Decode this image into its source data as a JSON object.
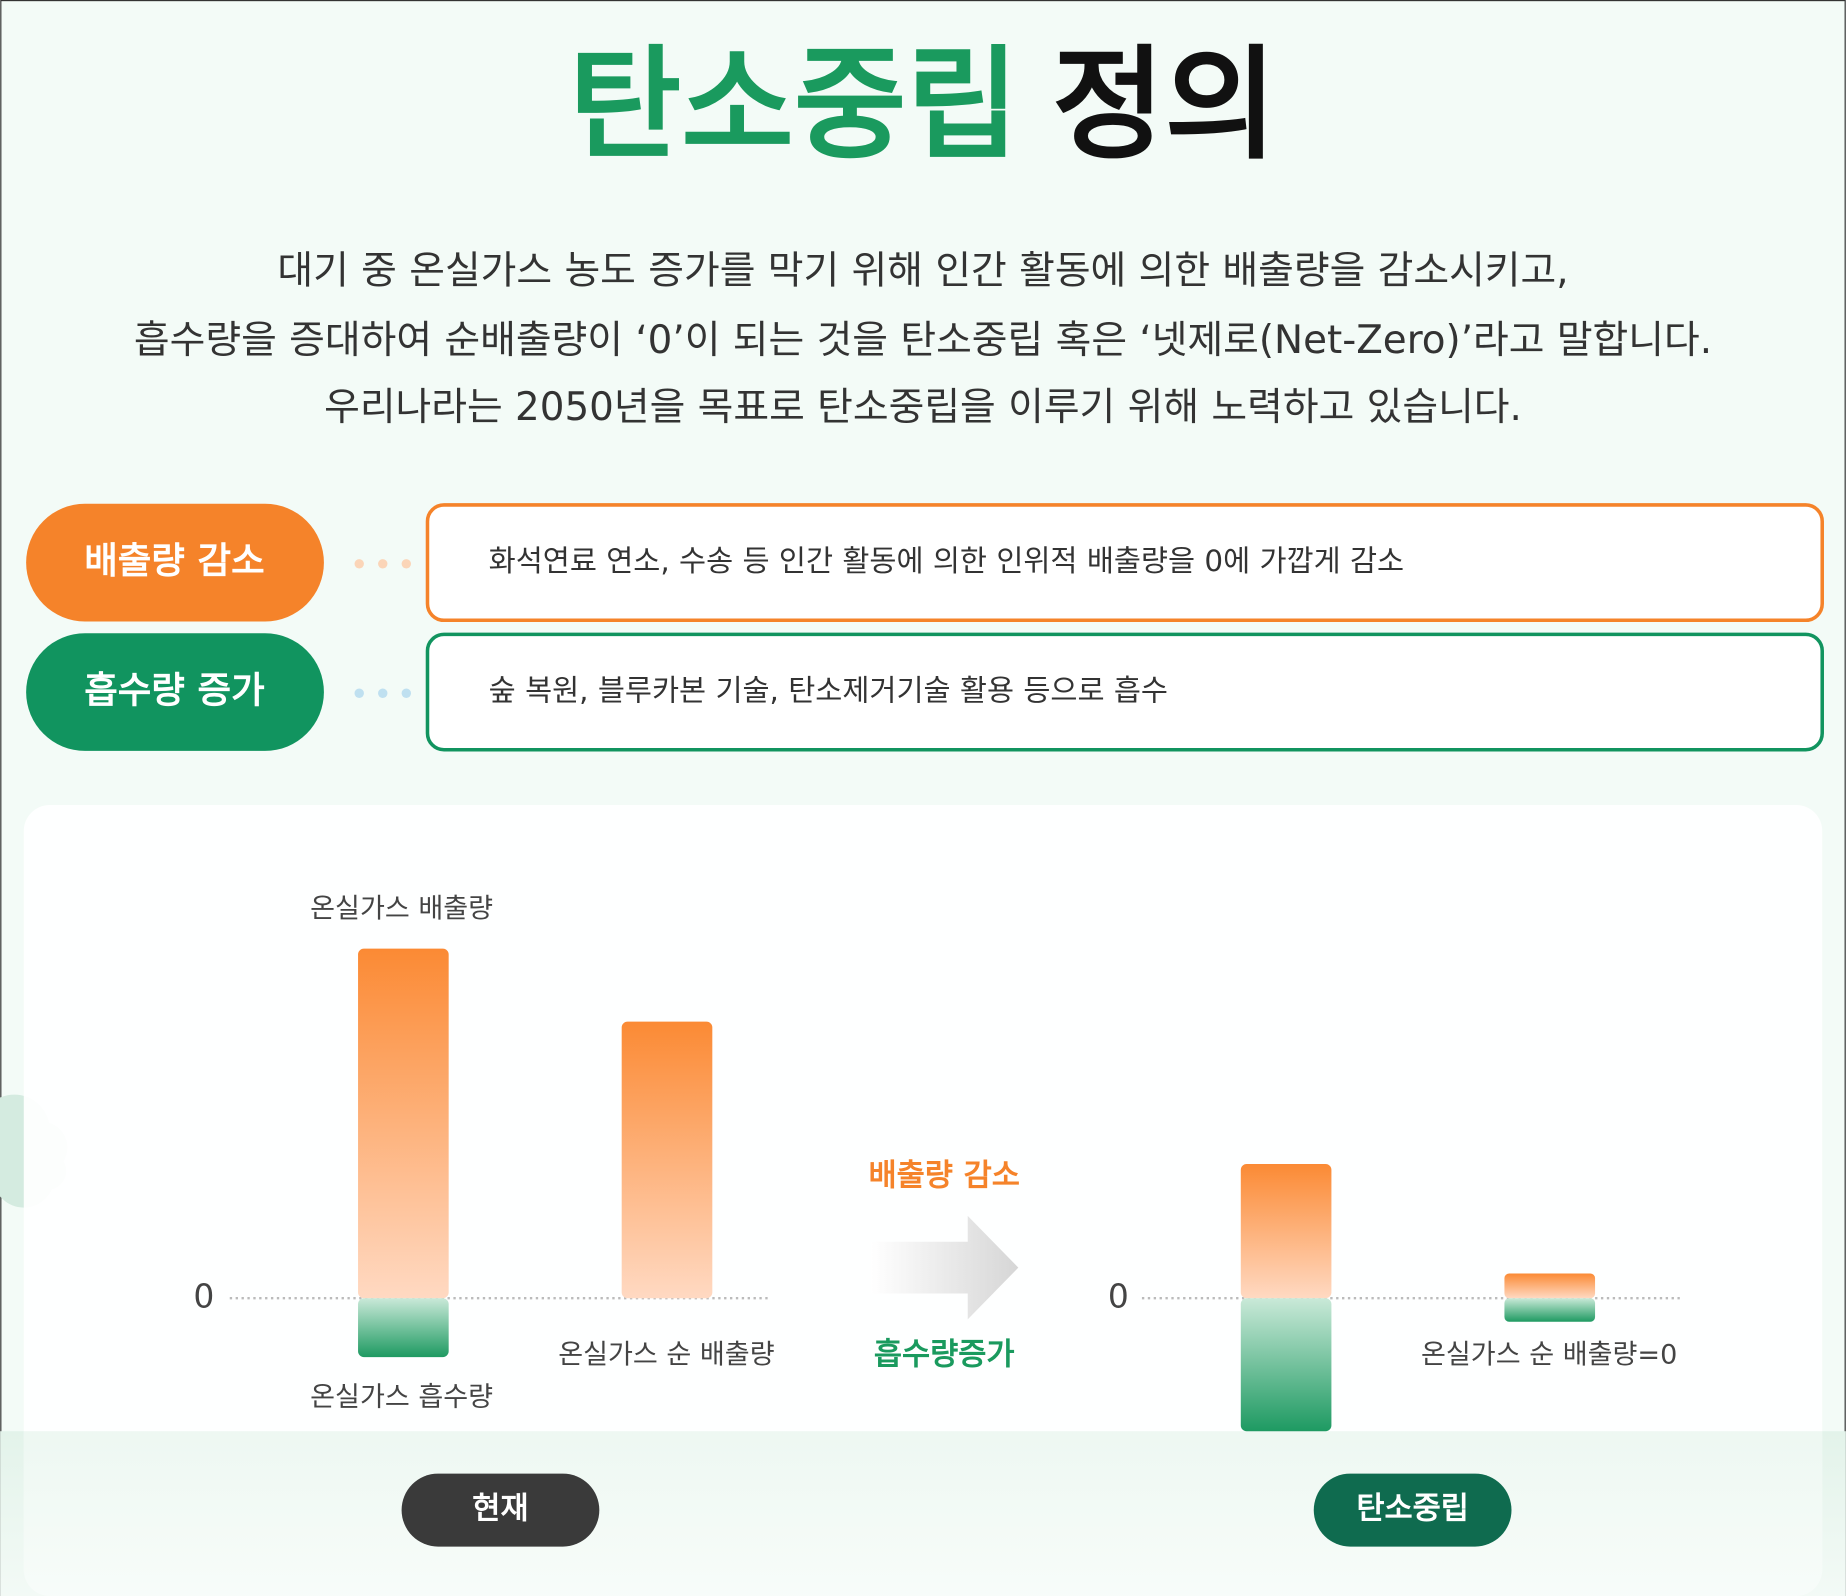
{
  "header": {
    "title_green": "탄소중립",
    "title_black": "정의"
  },
  "intro": {
    "lines": [
      "대기 중 온실가스 농도 증가를 막기 위해 인간 활동에 의한 배출량을 감소시키고,",
      "흡수량을 증대하여 순배출량이 ‘0’이 되는 것을 탄소중립 혹은 ‘넷제로(Net-Zero)’라고 말합니다.",
      "우리나라는 2050년을 목표로 탄소중립을 이루기 위해 노력하고 있습니다."
    ]
  },
  "items": [
    {
      "label": "배출량 감소",
      "description": "화석연료 연소, 수송 등 인간 활동에 의한 인위적 배출량을 0에 가깝게 감소"
    },
    {
      "label": "흡수량 증가",
      "description": "숲 복원, 블루카본 기술, 탄소제거기술 활용 등으로 흡수"
    }
  ],
  "diagram": {
    "current": {
      "zero_label": "0",
      "emission_label": "온실가스 배출량",
      "absorption_label": "온실가스 흡수량",
      "net_label": "온실가스 순 배출량",
      "badge": "현재"
    },
    "arrow": {
      "top": "배출량 감소",
      "bottom": "흡수량증가"
    },
    "neutral": {
      "zero_label": "0",
      "net_label": "온실가스 순 배출량=0",
      "badge": "탄소중립"
    }
  }
}
